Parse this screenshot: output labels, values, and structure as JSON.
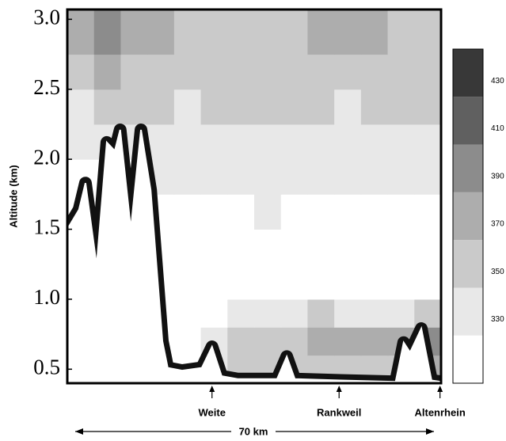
{
  "chart_data": {
    "type": "heatmap",
    "y_label": "Altitude (km)",
    "x_span_label": "70 km",
    "xlim": [
      0,
      70
    ],
    "ylim": [
      0.4,
      3.07
    ],
    "yticks": [
      0.5,
      {
        "value": 1.0,
        "label": "1.0"
      },
      1.5,
      {
        "value": 2.0,
        "label": "2.0"
      },
      2.5,
      {
        "value": 3.0,
        "label": "3.0"
      }
    ],
    "x_edges": [
      0,
      5,
      10,
      15,
      20,
      25,
      30,
      35,
      40,
      45,
      50,
      55,
      60,
      65,
      70
    ],
    "y_edges": [
      0.4,
      0.6,
      0.8,
      1.0,
      1.25,
      1.5,
      1.75,
      2.0,
      2.25,
      2.5,
      2.75,
      3.07
    ],
    "values": [
      [
        310,
        310,
        310,
        310,
        310,
        330,
        345,
        345,
        345,
        350,
        345,
        340,
        350,
        360
      ],
      [
        310,
        310,
        310,
        310,
        310,
        325,
        340,
        345,
        350,
        360,
        370,
        365,
        370,
        380
      ],
      [
        310,
        310,
        310,
        310,
        310,
        315,
        320,
        330,
        335,
        340,
        335,
        330,
        335,
        340
      ],
      [
        310,
        310,
        310,
        310,
        310,
        310,
        310,
        310,
        310,
        310,
        310,
        310,
        310,
        310
      ],
      [
        310,
        310,
        310,
        310,
        310,
        310,
        310,
        310,
        310,
        310,
        310,
        310,
        310,
        310
      ],
      [
        310,
        310,
        310,
        310,
        310,
        310,
        315,
        320,
        315,
        310,
        315,
        310,
        310,
        315
      ],
      [
        310,
        310,
        310,
        320,
        330,
        325,
        330,
        330,
        325,
        320,
        330,
        320,
        325,
        330
      ],
      [
        325,
        330,
        330,
        335,
        335,
        335,
        335,
        335,
        335,
        335,
        335,
        335,
        335,
        335
      ],
      [
        335,
        340,
        345,
        340,
        335,
        340,
        340,
        340,
        340,
        340,
        335,
        340,
        340,
        340
      ],
      [
        350,
        360,
        355,
        345,
        345,
        345,
        345,
        350,
        345,
        345,
        345,
        345,
        345,
        345
      ],
      [
        365,
        380,
        375,
        360,
        355,
        355,
        350,
        355,
        355,
        360,
        365,
        370,
        355,
        350
      ]
    ],
    "colorbar": {
      "levels": [
        300,
        320,
        340,
        360,
        380,
        400,
        420,
        440
      ],
      "colors": [
        "#ffffff",
        "#e8e8e8",
        "#cacaca",
        "#adadad",
        "#8c8c8c",
        "#606060",
        "#383838"
      ],
      "ticks": [
        330,
        350,
        370,
        390,
        410,
        430
      ]
    },
    "line": {
      "color": "#ffffff",
      "edge_color": "#111111",
      "x": [
        0,
        2.2,
        3.4,
        5.5,
        7.4,
        8.9,
        9.9,
        11.9,
        13.8,
        15.6,
        17.8,
        18.8,
        21.5,
        25.2,
        27.1,
        28.9,
        31.9,
        39.3,
        41.1,
        42.6,
        51.2,
        61.5,
        63.0,
        64.2,
        66.3,
        68.2,
        70
      ],
      "y": [
        1.5,
        1.64,
        1.83,
        1.24,
        2.12,
        2.06,
        2.21,
        1.5,
        2.21,
        1.78,
        0.7,
        0.51,
        0.49,
        0.51,
        0.66,
        0.45,
        0.43,
        0.43,
        0.59,
        0.43,
        0.42,
        0.41,
        0.69,
        0.62,
        0.79,
        0.42,
        0.41
      ]
    },
    "annotations": [
      {
        "text": "Weite",
        "x": 27.1
      },
      {
        "text": "Rankweil",
        "x": 50.9
      },
      {
        "text": "Altenrhein",
        "x": 69.8
      }
    ]
  }
}
